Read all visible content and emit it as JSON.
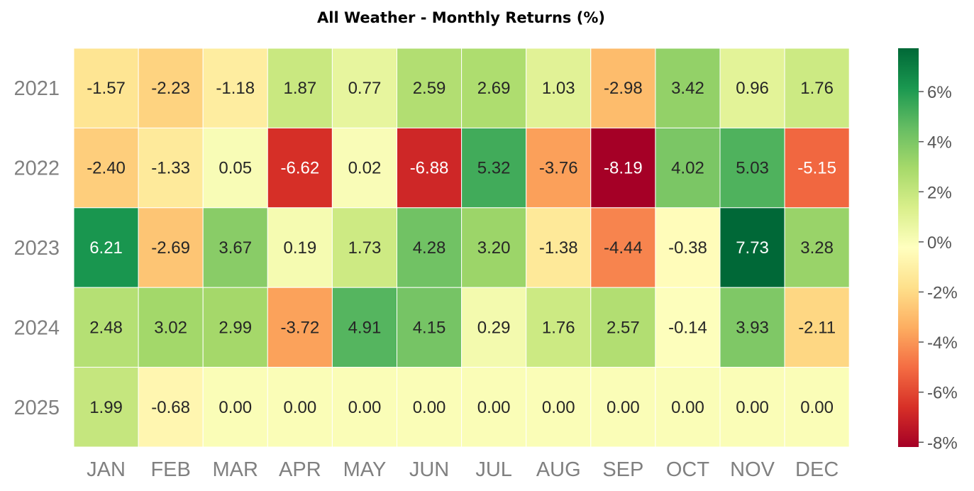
{
  "chart_data": {
    "type": "heatmap",
    "title": "All Weather - Monthly Returns (%)",
    "xlabel": "",
    "ylabel": "",
    "columns": [
      "JAN",
      "FEB",
      "MAR",
      "APR",
      "MAY",
      "JUN",
      "JUL",
      "AUG",
      "SEP",
      "OCT",
      "NOV",
      "DEC"
    ],
    "rows": [
      "2021",
      "2022",
      "2023",
      "2024",
      "2025"
    ],
    "values": [
      [
        -1.57,
        -2.23,
        -1.18,
        1.87,
        0.77,
        2.59,
        2.69,
        1.03,
        -2.98,
        3.42,
        0.96,
        1.76
      ],
      [
        -2.4,
        -1.33,
        0.05,
        -6.62,
        0.02,
        -6.88,
        5.32,
        -3.76,
        -8.19,
        4.02,
        5.03,
        -5.15
      ],
      [
        6.21,
        -2.69,
        3.67,
        0.19,
        1.73,
        4.28,
        3.2,
        -1.38,
        -4.44,
        -0.38,
        7.73,
        3.28
      ],
      [
        2.48,
        3.02,
        2.99,
        -3.72,
        4.91,
        4.15,
        0.29,
        1.76,
        2.57,
        -0.14,
        3.93,
        -2.11
      ],
      [
        1.99,
        -0.68,
        0.0,
        0.0,
        0.0,
        0.0,
        0.0,
        0.0,
        0.0,
        0.0,
        0.0,
        0.0
      ]
    ],
    "colorscale": "RdYlGn",
    "color_range": [
      -8.19,
      7.73
    ],
    "colorbar_ticks": [
      "6%",
      "4%",
      "2%",
      "0%",
      "-2%",
      "-4%",
      "-6%",
      "-8%"
    ],
    "colorbar_tick_values": [
      6,
      4,
      2,
      0,
      -2,
      -4,
      -6,
      -8
    ]
  }
}
